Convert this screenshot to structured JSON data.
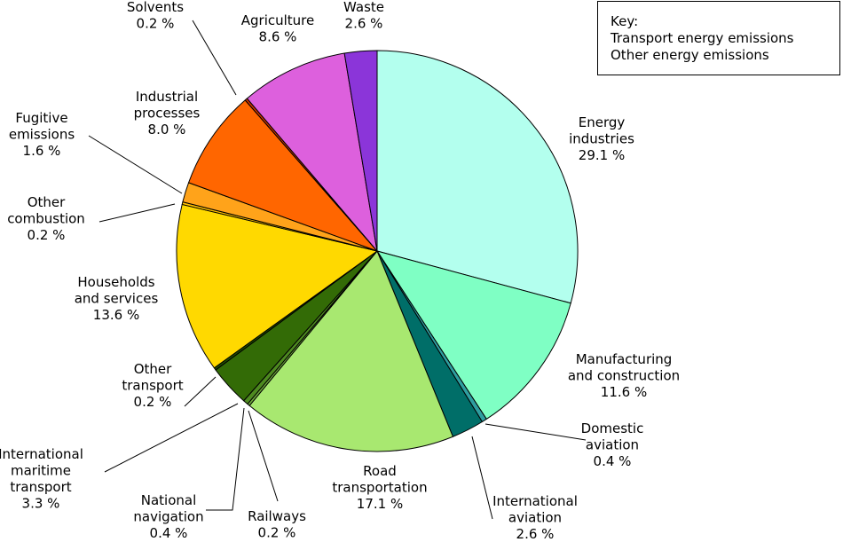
{
  "key": {
    "title": "Key:",
    "items": [
      "Transport energy emissions",
      "Other energy emissions"
    ]
  },
  "chart_data": {
    "type": "pie",
    "unit": "%",
    "start": "12 o'clock",
    "direction": "clockwise",
    "slices": [
      {
        "label": [
          "Energy",
          "industries"
        ],
        "value": 29.1,
        "value_text": "29.1 %",
        "color": "#b3ffee"
      },
      {
        "label": [
          "Manufacturing",
          "and construction"
        ],
        "value": 11.6,
        "value_text": "11.6 %",
        "color": "#7fffc4"
      },
      {
        "label": [
          "Domestic",
          "aviation"
        ],
        "value": 0.4,
        "value_text": "0.4 %",
        "color": "#2e9ea0"
      },
      {
        "label": [
          "International",
          "aviation"
        ],
        "value": 2.6,
        "value_text": "2.6 %",
        "color": "#006e68"
      },
      {
        "label": [
          "Road",
          "transportation"
        ],
        "value": 17.1,
        "value_text": "17.1 %",
        "color": "#a8e870"
      },
      {
        "label": [
          "Railways"
        ],
        "value": 0.2,
        "value_text": "0.2 %",
        "color": "#6ea83a"
      },
      {
        "label": [
          "National",
          "navigation"
        ],
        "value": 0.4,
        "value_text": "0.4 %",
        "color": "#4e8a20"
      },
      {
        "label": [
          "International",
          "maritime",
          "transport"
        ],
        "value": 3.3,
        "value_text": "3.3 %",
        "color": "#336b06"
      },
      {
        "label": [
          "Other",
          "transport"
        ],
        "value": 0.2,
        "value_text": "0.2 %",
        "color": "#1f4d00"
      },
      {
        "label": [
          "Households",
          "and services"
        ],
        "value": 13.6,
        "value_text": "13.6 %",
        "color": "#ffd900"
      },
      {
        "label": [
          "Other",
          "combustion"
        ],
        "value": 0.2,
        "value_text": "0.2 %",
        "color": "#ffc000"
      },
      {
        "label": [
          "Fugitive",
          "emissions"
        ],
        "value": 1.6,
        "value_text": "1.6 %",
        "color": "#ffa31a"
      },
      {
        "label": [
          "Industrial",
          "processes"
        ],
        "value": 8.0,
        "value_text": "8.0 %",
        "color": "#ff6600"
      },
      {
        "label": [
          "Solvents"
        ],
        "value": 0.2,
        "value_text": "0.2 %",
        "color": "#cc3300"
      },
      {
        "label": [
          "Agriculture"
        ],
        "value": 8.6,
        "value_text": "8.6 %",
        "color": "#dd60dd"
      },
      {
        "label": [
          "Waste"
        ],
        "value": 2.6,
        "value_text": "2.6 %",
        "color": "#8b35d9"
      }
    ]
  }
}
